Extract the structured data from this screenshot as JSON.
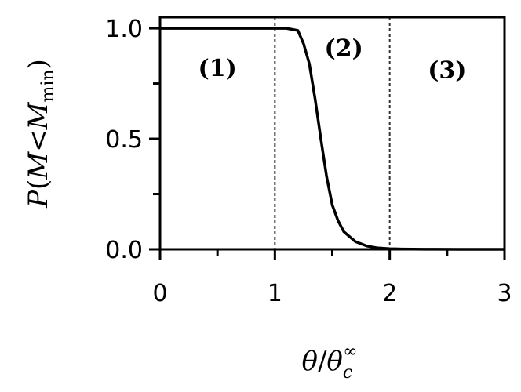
{
  "chart_data": {
    "type": "line",
    "xlabel": {
      "parts": [
        "θ",
        "/",
        "θ",
        "c",
        "∞"
      ]
    },
    "ylabel": {
      "parts": [
        "P",
        "(",
        "M",
        "<",
        "M",
        "min",
        ")"
      ]
    },
    "xlim": [
      0,
      3
    ],
    "ylim": [
      0,
      1.05
    ],
    "xticks": [
      0,
      1,
      2,
      3
    ],
    "xtick_labels": [
      "0",
      "1",
      "2",
      "3"
    ],
    "xminor_ticks": [
      0.5,
      1.5,
      2.5
    ],
    "yticks": [
      0.0,
      0.5,
      1.0
    ],
    "ytick_labels": [
      "0.0",
      "0.5",
      "1.0"
    ],
    "yminor_ticks": [
      0.25,
      0.75
    ],
    "grid": false,
    "vlines": [
      1,
      2
    ],
    "region_labels": [
      {
        "text": "(1)",
        "x": 0.5,
        "y": 0.82
      },
      {
        "text": "(2)",
        "x": 1.6,
        "y": 0.91
      },
      {
        "text": "(3)",
        "x": 2.5,
        "y": 0.81
      }
    ],
    "series": [
      {
        "color": "#000000",
        "x": [
          0,
          0.2,
          0.4,
          0.6,
          0.8,
          1.0,
          1.1,
          1.2,
          1.25,
          1.3,
          1.35,
          1.4,
          1.45,
          1.5,
          1.55,
          1.6,
          1.7,
          1.8,
          1.9,
          2.0,
          2.1,
          2.2,
          2.3,
          2.4,
          2.6,
          2.8,
          3.0
        ],
        "y": [
          1.0,
          1.0,
          1.0,
          1.0,
          1.0,
          1.0,
          1.0,
          0.99,
          0.93,
          0.84,
          0.68,
          0.5,
          0.33,
          0.2,
          0.13,
          0.08,
          0.035,
          0.015,
          0.006,
          0.003,
          0.0015,
          0.0008,
          0.0004,
          0.0002,
          0.0001,
          0.0,
          0.0
        ]
      }
    ]
  }
}
